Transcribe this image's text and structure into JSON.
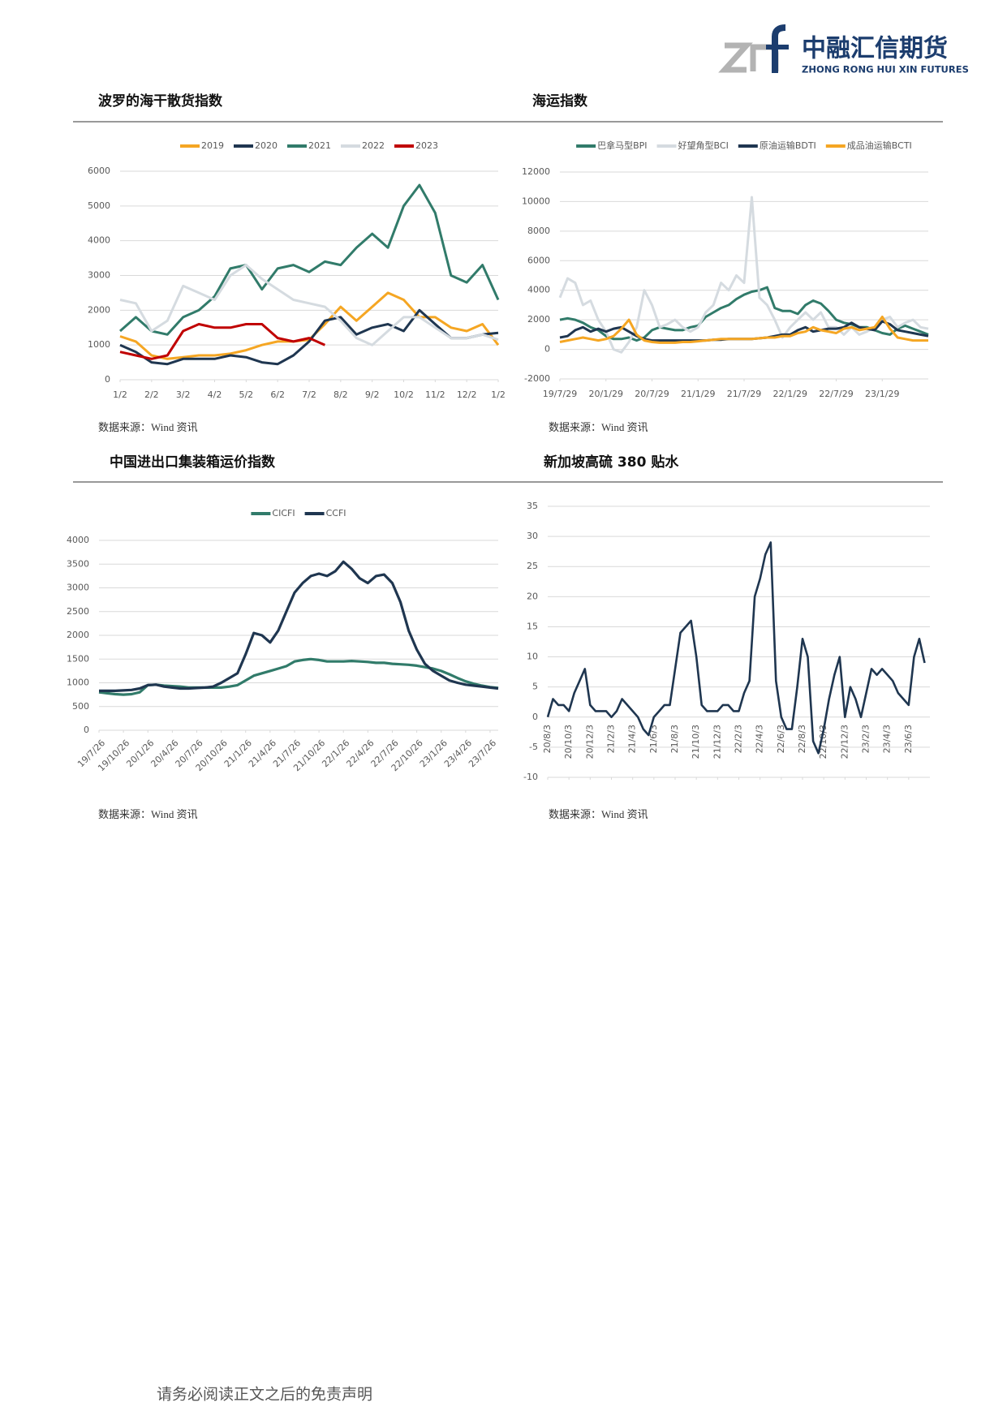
{
  "header": {
    "company": "中融汇信期货",
    "company_en": "ZHONG RONG HUI XIN FUTURES"
  },
  "chart_data": [
    {
      "type": "line",
      "title": "波罗的海干散货指数",
      "source": "数据来源：Wind 资讯",
      "legend": "top",
      "grid": true,
      "x": [
        0,
        0.5,
        1,
        1.5,
        2,
        2.5,
        3,
        3.5,
        4,
        4.5,
        5,
        5.5,
        6,
        6.5,
        7,
        7.5,
        8,
        8.5,
        9,
        9.5,
        10,
        10.5,
        11,
        11.5,
        12
      ],
      "xlim": [
        0,
        12
      ],
      "xticks": [
        {
          "value": 0,
          "label": "1/2"
        },
        {
          "value": 1,
          "label": "2/2"
        },
        {
          "value": 2,
          "label": "3/2"
        },
        {
          "value": 3,
          "label": "4/2"
        },
        {
          "value": 4,
          "label": "5/2"
        },
        {
          "value": 5,
          "label": "6/2"
        },
        {
          "value": 6,
          "label": "7/2"
        },
        {
          "value": 7,
          "label": "8/2"
        },
        {
          "value": 8,
          "label": "9/2"
        },
        {
          "value": 9,
          "label": "10/2"
        },
        {
          "value": 10,
          "label": "11/2"
        },
        {
          "value": 11,
          "label": "12/2"
        },
        {
          "value": 12,
          "label": "1/2"
        }
      ],
      "ylim": [
        0,
        6000
      ],
      "yticks": [
        0,
        1000,
        2000,
        3000,
        4000,
        5000,
        6000
      ],
      "series": [
        {
          "name": "2019",
          "color": "#f5a623",
          "values": [
            1250,
            1100,
            700,
            600,
            650,
            700,
            700,
            750,
            850,
            1000,
            1100,
            1100,
            1150,
            1600,
            2100,
            1700,
            2100,
            2500,
            2300,
            1800,
            1800,
            1500,
            1400,
            1600,
            1000
          ]
        },
        {
          "name": "2020",
          "color": "#1f3650",
          "values": [
            1000,
            800,
            500,
            450,
            600,
            600,
            600,
            700,
            650,
            500,
            450,
            700,
            1100,
            1700,
            1800,
            1300,
            1500,
            1600,
            1400,
            2000,
            1600,
            1200,
            1200,
            1300,
            1350
          ]
        },
        {
          "name": "2021",
          "color": "#317b6a",
          "values": [
            1400,
            1800,
            1400,
            1300,
            1800,
            2000,
            2400,
            3200,
            3300,
            2600,
            3200,
            3300,
            3100,
            3400,
            3300,
            3800,
            4200,
            3800,
            5000,
            5600,
            4800,
            3000,
            2800,
            3300,
            2300
          ]
        },
        {
          "name": "2022",
          "color": "#d5dbe0",
          "values": [
            2300,
            2200,
            1400,
            1700,
            2700,
            2500,
            2300,
            3000,
            3300,
            2900,
            2600,
            2300,
            2200,
            2100,
            1700,
            1200,
            1000,
            1400,
            1800,
            1800,
            1500,
            1200,
            1200,
            1300,
            1150
          ]
        },
        {
          "name": "2023",
          "color": "#c00000",
          "values": [
            800,
            700,
            600,
            700,
            1400,
            1600,
            1500,
            1500,
            1600,
            1600,
            1200,
            1100,
            1200,
            1000,
            null,
            null,
            null,
            null,
            null,
            null,
            null,
            null,
            null,
            null,
            null
          ]
        }
      ]
    },
    {
      "type": "line",
      "title": "海运指数",
      "source": "数据来源：Wind 资讯",
      "legend": "top",
      "grid": true,
      "x": [
        0,
        1,
        2,
        3,
        4,
        5,
        6,
        7,
        8,
        9,
        10,
        11,
        12,
        13,
        14,
        15,
        16,
        17,
        18,
        19,
        20,
        21,
        22,
        23,
        24,
        25,
        26,
        27,
        28,
        29,
        30,
        31,
        32,
        33,
        34,
        35,
        36,
        37,
        38,
        39,
        40,
        41,
        42,
        43,
        44,
        45,
        46,
        47,
        48
      ],
      "xlim": [
        0,
        48
      ],
      "xticks": [
        {
          "value": 0,
          "label": "19/7/29"
        },
        {
          "value": 6,
          "label": "20/1/29"
        },
        {
          "value": 12,
          "label": "20/7/29"
        },
        {
          "value": 18,
          "label": "21/1/29"
        },
        {
          "value": 24,
          "label": "21/7/29"
        },
        {
          "value": 30,
          "label": "22/1/29"
        },
        {
          "value": 36,
          "label": "22/7/29"
        },
        {
          "value": 42,
          "label": "23/1/29"
        }
      ],
      "ylim": [
        -2000,
        12000
      ],
      "yticks": [
        -2000,
        0,
        2000,
        4000,
        6000,
        8000,
        10000,
        12000
      ],
      "series": [
        {
          "name": "巴拿马型BPI",
          "color": "#317b6a",
          "values": [
            2000,
            2100,
            2000,
            1800,
            1500,
            1300,
            900,
            700,
            700,
            800,
            600,
            800,
            1300,
            1500,
            1400,
            1300,
            1300,
            1500,
            1600,
            2200,
            2500,
            2800,
            3000,
            3400,
            3700,
            3900,
            4000,
            4200,
            2800,
            2600,
            2600,
            2400,
            3000,
            3300,
            3100,
            2600,
            2000,
            1800,
            1700,
            1500,
            1500,
            1300,
            1100,
            1000,
            1400,
            1600,
            1400,
            1200,
            1000
          ]
        },
        {
          "name": "好望角型BCI",
          "color": "#d5dbe0",
          "values": [
            3500,
            4800,
            4500,
            3000,
            3300,
            2000,
            1200,
            0,
            -200,
            500,
            1500,
            4000,
            3000,
            1500,
            1700,
            2000,
            1500,
            1200,
            1500,
            2500,
            3000,
            4500,
            4000,
            5000,
            4500,
            10300,
            3500,
            3000,
            2000,
            800,
            1500,
            2000,
            2500,
            2000,
            2500,
            1500,
            1500,
            1000,
            1500,
            1000,
            1200,
            1500,
            2000,
            2200,
            1500,
            1800,
            2000,
            1500,
            1400
          ]
        },
        {
          "name": "原油运输BDTI",
          "color": "#1f3650",
          "values": [
            800,
            900,
            1300,
            1500,
            1200,
            1400,
            1200,
            1400,
            1500,
            1200,
            900,
            700,
            600,
            600,
            600,
            600,
            600,
            600,
            600,
            600,
            650,
            650,
            700,
            700,
            700,
            700,
            750,
            800,
            900,
            1000,
            1000,
            1300,
            1500,
            1200,
            1300,
            1400,
            1400,
            1500,
            1800,
            1500,
            1400,
            1300,
            1900,
            1700,
            1300,
            1200,
            1100,
            1000,
            900
          ]
        },
        {
          "name": "成品油运输BCTI",
          "color": "#f5a623",
          "values": [
            500,
            600,
            700,
            800,
            700,
            600,
            700,
            900,
            1400,
            2000,
            1000,
            600,
            500,
            450,
            450,
            450,
            500,
            500,
            550,
            600,
            650,
            700,
            700,
            700,
            700,
            700,
            750,
            800,
            800,
            900,
            900,
            1100,
            1200,
            1500,
            1300,
            1200,
            1100,
            1400,
            1500,
            1300,
            1400,
            1500,
            2200,
            1400,
            800,
            700,
            600,
            600,
            600
          ]
        }
      ]
    },
    {
      "type": "line",
      "title": "中国进出口集装箱运价指数",
      "source": "数据来源：Wind 资讯",
      "legend": "top",
      "grid": true,
      "x": [
        0,
        1,
        2,
        3,
        4,
        5,
        6,
        7,
        8,
        9,
        10,
        11,
        12,
        13,
        14,
        15,
        16,
        17,
        18,
        19,
        20,
        21,
        22,
        23,
        24,
        25,
        26,
        27,
        28,
        29,
        30,
        31,
        32,
        33,
        34,
        35,
        36,
        37,
        38,
        39,
        40,
        41,
        42,
        43,
        44,
        45,
        46,
        47,
        48,
        49
      ],
      "xlim": [
        0,
        49
      ],
      "xticks": [
        {
          "value": 0,
          "label": "19/7/26"
        },
        {
          "value": 3,
          "label": "19/10/26"
        },
        {
          "value": 6,
          "label": "20/1/26"
        },
        {
          "value": 9,
          "label": "20/4/26"
        },
        {
          "value": 12,
          "label": "20/7/26"
        },
        {
          "value": 15,
          "label": "20/10/26"
        },
        {
          "value": 18,
          "label": "21/1/26"
        },
        {
          "value": 21,
          "label": "21/4/26"
        },
        {
          "value": 24,
          "label": "21/7/26"
        },
        {
          "value": 27,
          "label": "21/10/26"
        },
        {
          "value": 30,
          "label": "22/1/26"
        },
        {
          "value": 33,
          "label": "22/4/26"
        },
        {
          "value": 36,
          "label": "22/7/26"
        },
        {
          "value": 39,
          "label": "22/10/26"
        },
        {
          "value": 42,
          "label": "23/1/26"
        },
        {
          "value": 45,
          "label": "23/4/26"
        },
        {
          "value": 48,
          "label": "23/7/26"
        }
      ],
      "ylim": [
        0,
        4000
      ],
      "yticks": [
        0,
        500,
        1000,
        1500,
        2000,
        2500,
        3000,
        3500,
        4000
      ],
      "series": [
        {
          "name": "CICFI",
          "color": "#317b6a",
          "values": [
            800,
            780,
            760,
            750,
            760,
            800,
            950,
            960,
            940,
            930,
            920,
            900,
            900,
            900,
            900,
            900,
            920,
            950,
            1050,
            1150,
            1200,
            1250,
            1300,
            1350,
            1450,
            1480,
            1500,
            1480,
            1450,
            1450,
            1450,
            1460,
            1450,
            1440,
            1420,
            1420,
            1400,
            1390,
            1380,
            1360,
            1330,
            1300,
            1250,
            1180,
            1100,
            1030,
            980,
            940,
            910,
            890
          ]
        },
        {
          "name": "CCFI",
          "color": "#1f3650",
          "values": [
            830,
            830,
            830,
            840,
            850,
            880,
            950,
            960,
            920,
            900,
            880,
            880,
            890,
            900,
            920,
            1000,
            1100,
            1200,
            1600,
            2050,
            2000,
            1850,
            2100,
            2500,
            2900,
            3100,
            3250,
            3300,
            3250,
            3350,
            3550,
            3400,
            3200,
            3100,
            3250,
            3280,
            3100,
            2700,
            2100,
            1700,
            1400,
            1250,
            1150,
            1050,
            1000,
            960,
            940,
            920,
            900,
            880
          ]
        }
      ]
    },
    {
      "type": "line",
      "title": "新加坡高硫 380 贴水",
      "source": "数据来源：Wind 资讯",
      "grid": true,
      "x": [
        0,
        0.5,
        1,
        1.5,
        2,
        2.5,
        3,
        3.5,
        4,
        4.5,
        5,
        5.5,
        6,
        6.5,
        7,
        7.5,
        8,
        8.5,
        9,
        9.5,
        10,
        10.5,
        11,
        11.5,
        12,
        12.5,
        13,
        13.5,
        14,
        14.5,
        15,
        15.5,
        16,
        16.5,
        17,
        17.5,
        18,
        18.5,
        19,
        19.5,
        20,
        20.5,
        21,
        21.5,
        22,
        22.5,
        23,
        23.5,
        24,
        24.5,
        25,
        25.5,
        26,
        26.5,
        27,
        27.5,
        28,
        28.5,
        29,
        29.5,
        30,
        30.5,
        31,
        31.5,
        32,
        32.5,
        33,
        33.5,
        34,
        34.5,
        35,
        35.5
      ],
      "xlim": [
        0,
        36
      ],
      "xticks": [
        {
          "value": 0,
          "label": "20/8/3"
        },
        {
          "value": 2,
          "label": "20/10/3"
        },
        {
          "value": 4,
          "label": "20/12/3"
        },
        {
          "value": 6,
          "label": "21/2/3"
        },
        {
          "value": 8,
          "label": "21/4/3"
        },
        {
          "value": 10,
          "label": "21/6/3"
        },
        {
          "value": 12,
          "label": "21/8/3"
        },
        {
          "value": 14,
          "label": "21/10/3"
        },
        {
          "value": 16,
          "label": "21/12/3"
        },
        {
          "value": 18,
          "label": "22/2/3"
        },
        {
          "value": 20,
          "label": "22/4/3"
        },
        {
          "value": 22,
          "label": "22/6/3"
        },
        {
          "value": 24,
          "label": "22/8/3"
        },
        {
          "value": 26,
          "label": "22/10/3"
        },
        {
          "value": 28,
          "label": "22/12/3"
        },
        {
          "value": 30,
          "label": "23/2/3"
        },
        {
          "value": 32,
          "label": "23/4/3"
        },
        {
          "value": 34,
          "label": "23/6/3"
        }
      ],
      "ylim": [
        -10,
        35
      ],
      "yticks": [
        -10,
        -5,
        0,
        5,
        10,
        15,
        20,
        25,
        30,
        35
      ],
      "series": [
        {
          "color": "#1f3650",
          "values": [
            0,
            3,
            2,
            2,
            1,
            4,
            6,
            8,
            2,
            1,
            1,
            1,
            0,
            1,
            3,
            2,
            1,
            0,
            -2,
            -3,
            0,
            1,
            2,
            2,
            8,
            14,
            15,
            16,
            10,
            2,
            1,
            1,
            1,
            2,
            2,
            1,
            1,
            4,
            6,
            20,
            23,
            27,
            29,
            6,
            0,
            -2,
            -2,
            5,
            13,
            10,
            -4,
            -6,
            -2,
            3,
            7,
            10,
            0,
            5,
            3,
            0,
            4,
            8,
            7,
            8,
            7,
            6,
            4,
            3,
            2,
            10,
            13,
            9
          ]
        }
      ]
    }
  ],
  "footer": "请务必阅读正文之后的免责声明"
}
